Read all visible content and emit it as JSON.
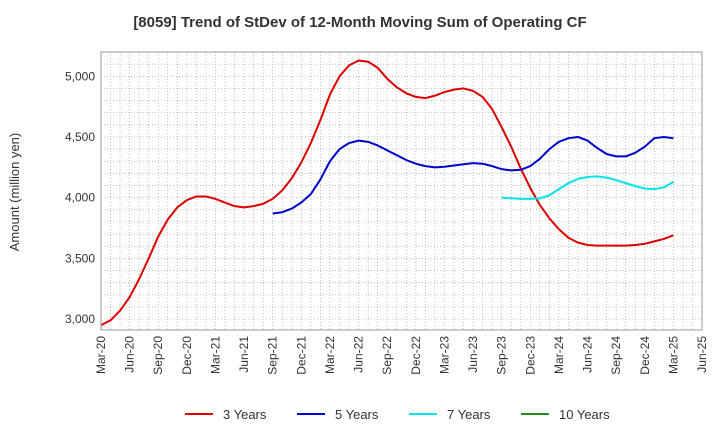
{
  "chart_data": {
    "type": "line",
    "title": "[8059]  Trend of StDev of 12-Month Moving Sum of Operating CF",
    "xlabel": "",
    "ylabel": "Amount (million yen)",
    "ylim": [
      2910,
      5200
    ],
    "yticks": [
      3000,
      3500,
      4000,
      4500,
      5000
    ],
    "ytick_labels": [
      "3,000",
      "3,500",
      "4,000",
      "4,500",
      "5,000"
    ],
    "xlim": [
      "2020-03",
      "2025-06"
    ],
    "xtick_labels": [
      "Mar-20",
      "Jun-20",
      "Sep-20",
      "Dec-20",
      "Mar-21",
      "Jun-21",
      "Sep-21",
      "Dec-21",
      "Mar-22",
      "Jun-22",
      "Sep-22",
      "Dec-22",
      "Mar-23",
      "Jun-23",
      "Sep-23",
      "Dec-23",
      "Mar-24",
      "Jun-24",
      "Sep-24",
      "Dec-24",
      "Mar-25",
      "Jun-25"
    ],
    "grid": true,
    "legend_position": "bottom",
    "series": [
      {
        "name": "3 Years",
        "color": "#dd0000",
        "x": [
          "2020-03",
          "2020-04",
          "2020-05",
          "2020-06",
          "2020-07",
          "2020-08",
          "2020-09",
          "2020-10",
          "2020-11",
          "2020-12",
          "2021-01",
          "2021-02",
          "2021-03",
          "2021-04",
          "2021-05",
          "2021-06",
          "2021-07",
          "2021-08",
          "2021-09",
          "2021-10",
          "2021-11",
          "2021-12",
          "2022-01",
          "2022-02",
          "2022-03",
          "2022-04",
          "2022-05",
          "2022-06",
          "2022-07",
          "2022-08",
          "2022-09",
          "2022-10",
          "2022-11",
          "2022-12",
          "2023-01",
          "2023-02",
          "2023-03",
          "2023-04",
          "2023-05",
          "2023-06",
          "2023-07",
          "2023-08",
          "2023-09",
          "2023-10",
          "2023-11",
          "2023-12",
          "2024-01",
          "2024-02",
          "2024-03",
          "2024-04",
          "2024-05",
          "2024-06",
          "2024-07",
          "2024-08",
          "2024-09",
          "2024-10",
          "2024-11",
          "2024-12",
          "2025-01",
          "2025-02",
          "2025-03"
        ],
        "values": [
          2950,
          2990,
          3070,
          3180,
          3330,
          3500,
          3680,
          3820,
          3920,
          3980,
          4010,
          4010,
          3990,
          3960,
          3930,
          3920,
          3930,
          3950,
          3990,
          4060,
          4160,
          4290,
          4450,
          4640,
          4850,
          5000,
          5090,
          5130,
          5120,
          5070,
          4980,
          4910,
          4860,
          4830,
          4820,
          4840,
          4870,
          4890,
          4900,
          4880,
          4830,
          4730,
          4580,
          4420,
          4240,
          4080,
          3940,
          3830,
          3740,
          3670,
          3630,
          3610,
          3605,
          3605,
          3605,
          3605,
          3610,
          3620,
          3640,
          3660,
          3690
        ]
      },
      {
        "name": "5 Years",
        "color": "#0000cc",
        "x": [
          "2021-09",
          "2021-10",
          "2021-11",
          "2021-12",
          "2022-01",
          "2022-02",
          "2022-03",
          "2022-04",
          "2022-05",
          "2022-06",
          "2022-07",
          "2022-08",
          "2022-09",
          "2022-10",
          "2022-11",
          "2022-12",
          "2023-01",
          "2023-02",
          "2023-03",
          "2023-04",
          "2023-05",
          "2023-06",
          "2023-07",
          "2023-08",
          "2023-09",
          "2023-10",
          "2023-11",
          "2023-12",
          "2024-01",
          "2024-02",
          "2024-03",
          "2024-04",
          "2024-05",
          "2024-06",
          "2024-07",
          "2024-08",
          "2024-09",
          "2024-10",
          "2024-11",
          "2024-12",
          "2025-01",
          "2025-02",
          "2025-03"
        ],
        "values": [
          3870,
          3880,
          3910,
          3960,
          4030,
          4150,
          4300,
          4400,
          4450,
          4470,
          4460,
          4430,
          4390,
          4350,
          4310,
          4280,
          4260,
          4250,
          4255,
          4265,
          4275,
          4285,
          4280,
          4260,
          4235,
          4225,
          4230,
          4260,
          4320,
          4400,
          4460,
          4490,
          4500,
          4470,
          4410,
          4360,
          4340,
          4340,
          4370,
          4420,
          4490,
          4500,
          4490
        ]
      },
      {
        "name": "7 Years",
        "color": "#00e5e5",
        "x": [
          "2023-09",
          "2023-10",
          "2023-11",
          "2023-12",
          "2024-01",
          "2024-02",
          "2024-03",
          "2024-04",
          "2024-05",
          "2024-06",
          "2024-07",
          "2024-08",
          "2024-09",
          "2024-10",
          "2024-11",
          "2024-12",
          "2025-01",
          "2025-02",
          "2025-03"
        ],
        "values": [
          4000,
          3995,
          3990,
          3990,
          3995,
          4020,
          4070,
          4120,
          4155,
          4170,
          4175,
          4165,
          4145,
          4120,
          4095,
          4075,
          4070,
          4085,
          4130
        ]
      },
      {
        "name": "10 Years",
        "color": "#228b22",
        "x": [],
        "values": []
      }
    ]
  }
}
